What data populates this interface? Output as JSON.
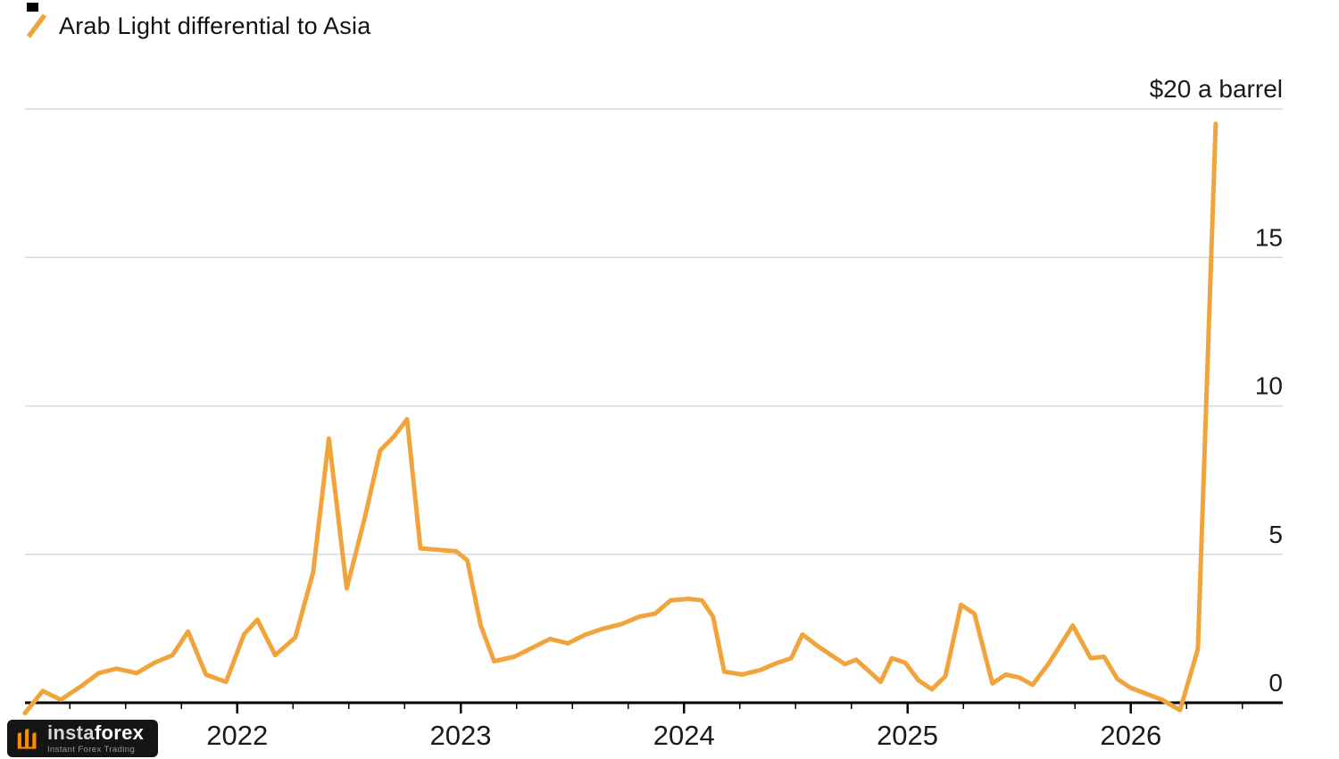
{
  "legend": {
    "label": "Arab Light differential to Asia"
  },
  "chart_data": {
    "type": "line",
    "title": "Arab Light differential to Asia",
    "unit_label": "$20 a barrel",
    "xlabel": "",
    "ylabel": "",
    "x_ticks": [
      2022,
      2023,
      2024,
      2025,
      2026
    ],
    "y_ticks": [
      0,
      5,
      10,
      15,
      20
    ],
    "y_tick_labels": [
      "0",
      "5",
      "10",
      "15",
      "$20 a barrel"
    ],
    "xlim": [
      2021.05,
      2026.68
    ],
    "ylim": [
      0,
      20
    ],
    "grid": "horizontal",
    "legend_position": "top-left",
    "line_color": "#F2A43C",
    "grid_color": "#D8D8D8",
    "axis_color": "#000000",
    "text_color": "#1A1A1A",
    "series": [
      {
        "name": "Arab Light differential to Asia",
        "points": [
          [
            2021.05,
            -0.35
          ],
          [
            2021.13,
            0.4
          ],
          [
            2021.21,
            0.1
          ],
          [
            2021.3,
            0.55
          ],
          [
            2021.38,
            1.0
          ],
          [
            2021.46,
            1.15
          ],
          [
            2021.55,
            1.0
          ],
          [
            2021.63,
            1.35
          ],
          [
            2021.71,
            1.6
          ],
          [
            2021.78,
            2.4
          ],
          [
            2021.86,
            0.95
          ],
          [
            2021.95,
            0.7
          ],
          [
            2022.03,
            2.3
          ],
          [
            2022.09,
            2.8
          ],
          [
            2022.17,
            1.6
          ],
          [
            2022.26,
            2.2
          ],
          [
            2022.34,
            4.4
          ],
          [
            2022.41,
            8.9
          ],
          [
            2022.49,
            3.85
          ],
          [
            2022.57,
            6.2
          ],
          [
            2022.64,
            8.5
          ],
          [
            2022.7,
            8.95
          ],
          [
            2022.76,
            9.55
          ],
          [
            2022.82,
            5.2
          ],
          [
            2022.9,
            5.15
          ],
          [
            2022.98,
            5.1
          ],
          [
            2023.03,
            4.8
          ],
          [
            2023.09,
            2.6
          ],
          [
            2023.15,
            1.4
          ],
          [
            2023.24,
            1.55
          ],
          [
            2023.32,
            1.85
          ],
          [
            2023.4,
            2.15
          ],
          [
            2023.48,
            2.0
          ],
          [
            2023.56,
            2.3
          ],
          [
            2023.64,
            2.5
          ],
          [
            2023.72,
            2.65
          ],
          [
            2023.8,
            2.9
          ],
          [
            2023.87,
            3.0
          ],
          [
            2023.94,
            3.45
          ],
          [
            2024.02,
            3.5
          ],
          [
            2024.08,
            3.45
          ],
          [
            2024.13,
            2.9
          ],
          [
            2024.18,
            1.05
          ],
          [
            2024.26,
            0.95
          ],
          [
            2024.34,
            1.1
          ],
          [
            2024.42,
            1.35
          ],
          [
            2024.48,
            1.5
          ],
          [
            2024.53,
            2.3
          ],
          [
            2024.6,
            1.9
          ],
          [
            2024.67,
            1.55
          ],
          [
            2024.72,
            1.3
          ],
          [
            2024.77,
            1.45
          ],
          [
            2024.83,
            1.05
          ],
          [
            2024.88,
            0.7
          ],
          [
            2024.93,
            1.5
          ],
          [
            2024.99,
            1.35
          ],
          [
            2025.05,
            0.75
          ],
          [
            2025.11,
            0.45
          ],
          [
            2025.17,
            0.9
          ],
          [
            2025.24,
            3.3
          ],
          [
            2025.3,
            3.0
          ],
          [
            2025.38,
            0.65
          ],
          [
            2025.44,
            0.95
          ],
          [
            2025.5,
            0.85
          ],
          [
            2025.56,
            0.6
          ],
          [
            2025.63,
            1.3
          ],
          [
            2025.69,
            2.0
          ],
          [
            2025.74,
            2.6
          ],
          [
            2025.82,
            1.5
          ],
          [
            2025.88,
            1.55
          ],
          [
            2025.94,
            0.8
          ],
          [
            2026.0,
            0.5
          ],
          [
            2026.07,
            0.3
          ],
          [
            2026.14,
            0.1
          ],
          [
            2026.22,
            -0.25
          ],
          [
            2026.3,
            1.8
          ],
          [
            2026.38,
            19.5
          ]
        ]
      }
    ]
  },
  "watermark": {
    "brand": "instaforex",
    "brand_insta": "insta",
    "brand_forex": "forex",
    "tagline": "Instant Forex Trading",
    "brand_color": "#FF8A00"
  }
}
